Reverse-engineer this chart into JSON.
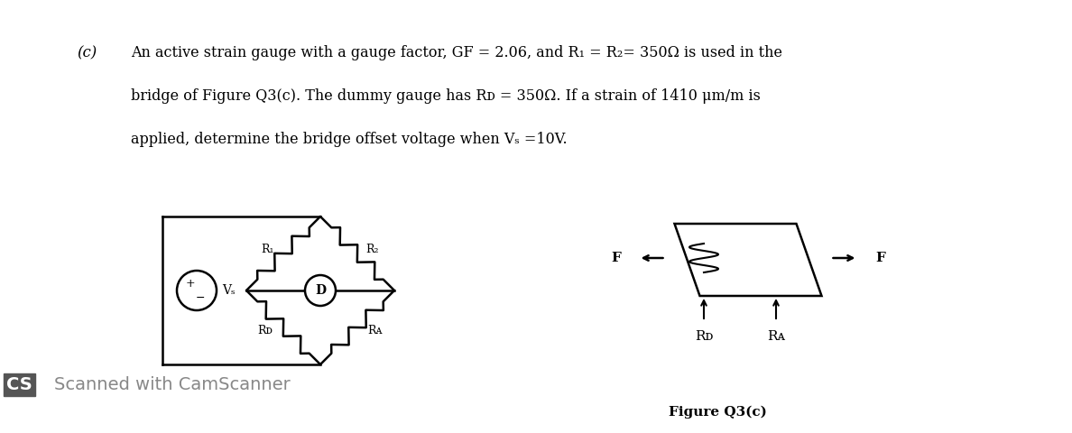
{
  "title_label": "(c)",
  "line1": "An active strain gauge with a gauge factor, GF = 2.06, and R₁ = R₂= 350Ω is used in the",
  "line2": "bridge of Figure Q3(c). The dummy gauge has Rᴅ = 350Ω. If a strain of 1410 μm/m is",
  "line3": "applied, determine the bridge offset voltage when Vₛ =10V.",
  "figure_label": "Figure Q3(c)",
  "camscanner_text": "Scanned with CamScanner",
  "bg_color": "#ffffff",
  "text_color": "#000000",
  "gray_color": "#888888"
}
